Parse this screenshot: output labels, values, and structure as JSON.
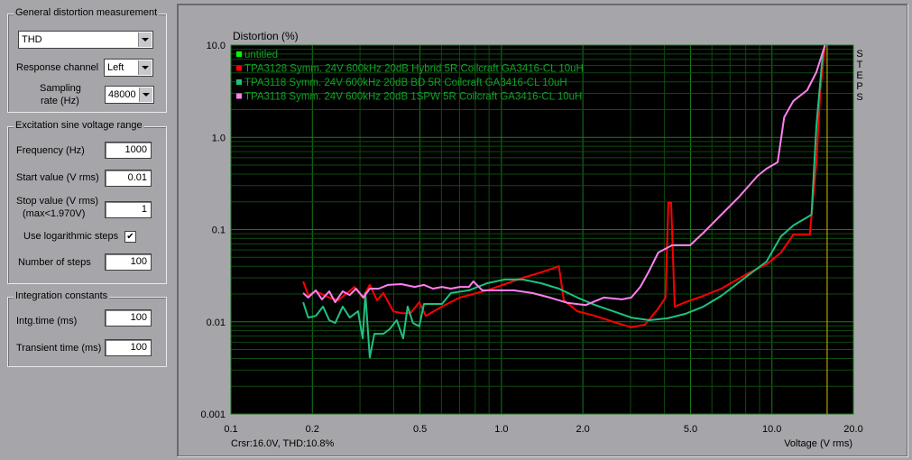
{
  "controls": {
    "general": {
      "title": "General distortion measurement",
      "measurement_type": "THD",
      "response_channel_label": "Response channel",
      "response_channel": "Left",
      "sampling_rate_label_1": "Sampling",
      "sampling_rate_label_2": "rate (Hz)",
      "sampling_rate": "48000"
    },
    "excitation": {
      "title": "Excitation sine voltage range",
      "frequency_label": "Frequency (Hz)",
      "frequency": "1000",
      "start_label": "Start value (V rms)",
      "start": "0.01",
      "stop_label_1": "Stop value (V rms)",
      "stop_label_2": "(max<1.970V)",
      "stop": "1",
      "log_steps_label": "Use logarithmic steps",
      "log_steps_checked": true,
      "log_steps_mark": "✔",
      "steps_label": "Number of steps",
      "steps": "100"
    },
    "integration": {
      "title": "Integration constants",
      "intg_label": "Intg.time (ms)",
      "intg": "100",
      "transient_label": "Transient time (ms)",
      "transient": "100"
    }
  },
  "chart_data": {
    "type": "line",
    "ylabel": "Distortion (%)",
    "xlabel": "Voltage (V rms)",
    "x_scale": "log",
    "y_scale": "log",
    "xlim": [
      0.1,
      20.0
    ],
    "ylim": [
      0.001,
      10.0
    ],
    "x_ticks": [
      "0.1",
      "0.2",
      "0.5",
      "1.0",
      "2.0",
      "5.0",
      "10.0",
      "20.0"
    ],
    "x_tick_values": [
      0.1,
      0.2,
      0.5,
      1.0,
      2.0,
      5.0,
      10.0,
      20.0
    ],
    "y_ticks": [
      "10.0",
      "1.0",
      "0.1",
      "0.01",
      "0.001"
    ],
    "y_tick_values": [
      10,
      1,
      0.1,
      0.01,
      0.001
    ],
    "grid": true,
    "legend_placement": "top-left",
    "side_label": "STEPS",
    "cursor_readout": "Crsr:16.0V, THD:10.8%",
    "cursor_x": 16.0,
    "cursor_color": "#d0c000",
    "background": "#000000",
    "grid_color": "#0f4a0f",
    "major_grid_color": "#1a7a1a",
    "legend_text_color": "#14a028",
    "series": [
      {
        "name": "untitled",
        "color": "#00ff00",
        "points": []
      },
      {
        "name": "TPA3128 Symm. 24V 600kHz 20dB Hybrid 5R Coilcraft GA3416-CL 10uH",
        "color": "#ff0000",
        "points": [
          [
            0.185,
            0.0274
          ],
          [
            0.193,
            0.0195
          ],
          [
            0.206,
            0.0214
          ],
          [
            0.231,
            0.0183
          ],
          [
            0.249,
            0.0171
          ],
          [
            0.269,
            0.0205
          ],
          [
            0.286,
            0.0239
          ],
          [
            0.307,
            0.0183
          ],
          [
            0.326,
            0.0251
          ],
          [
            0.347,
            0.0171
          ],
          [
            0.366,
            0.0205
          ],
          [
            0.398,
            0.013
          ],
          [
            0.427,
            0.0124
          ],
          [
            0.461,
            0.0124
          ],
          [
            0.497,
            0.0163
          ],
          [
            0.525,
            0.0116
          ],
          [
            0.603,
            0.0146
          ],
          [
            0.702,
            0.0183
          ],
          [
            0.885,
            0.0219
          ],
          [
            1.03,
            0.0256
          ],
          [
            1.2,
            0.03
          ],
          [
            1.4,
            0.0343
          ],
          [
            1.57,
            0.0384
          ],
          [
            1.63,
            0.0402
          ],
          [
            1.7,
            0.0171
          ],
          [
            1.91,
            0.013
          ],
          [
            2.22,
            0.0116
          ],
          [
            2.59,
            0.01
          ],
          [
            3.02,
            0.0087
          ],
          [
            3.39,
            0.0093
          ],
          [
            3.8,
            0.0139
          ],
          [
            4.04,
            0.0183
          ],
          [
            4.14,
            0.195
          ],
          [
            4.24,
            0.195
          ],
          [
            4.37,
            0.0146
          ],
          [
            4.79,
            0.0163
          ],
          [
            5.58,
            0.0191
          ],
          [
            6.5,
            0.0229
          ],
          [
            8.19,
            0.0336
          ],
          [
            9.55,
            0.042
          ],
          [
            10.8,
            0.0563
          ],
          [
            12.0,
            0.0883
          ],
          [
            13.8,
            0.0883
          ],
          [
            14.6,
            0.536
          ],
          [
            15.1,
            3.24
          ],
          [
            15.7,
            10
          ]
        ]
      },
      {
        "name": "TPA3118 Symm. 24V 600kHz 20dB BD 5R Coilcraft GA3416-CL 10uH",
        "color": "#20c080",
        "points": [
          [
            0.185,
            0.0163
          ],
          [
            0.193,
            0.0111
          ],
          [
            0.206,
            0.0116
          ],
          [
            0.219,
            0.0146
          ],
          [
            0.231,
            0.0104
          ],
          [
            0.243,
            0.0097
          ],
          [
            0.259,
            0.0146
          ],
          [
            0.275,
            0.0111
          ],
          [
            0.295,
            0.013
          ],
          [
            0.307,
            0.0066
          ],
          [
            0.314,
            0.0205
          ],
          [
            0.326,
            0.0041
          ],
          [
            0.339,
            0.0074
          ],
          [
            0.366,
            0.0074
          ],
          [
            0.386,
            0.0083
          ],
          [
            0.41,
            0.0104
          ],
          [
            0.433,
            0.0066
          ],
          [
            0.45,
            0.0146
          ],
          [
            0.471,
            0.0097
          ],
          [
            0.497,
            0.0089
          ],
          [
            0.517,
            0.0156
          ],
          [
            0.549,
            0.0156
          ],
          [
            0.603,
            0.0156
          ],
          [
            0.65,
            0.0205
          ],
          [
            0.758,
            0.0219
          ],
          [
            0.885,
            0.0262
          ],
          [
            1.03,
            0.0287
          ],
          [
            1.2,
            0.0287
          ],
          [
            1.4,
            0.0262
          ],
          [
            1.63,
            0.0229
          ],
          [
            1.91,
            0.0183
          ],
          [
            2.22,
            0.0152
          ],
          [
            2.59,
            0.013
          ],
          [
            3.02,
            0.0111
          ],
          [
            3.52,
            0.0104
          ],
          [
            4.11,
            0.0109
          ],
          [
            4.79,
            0.0122
          ],
          [
            5.58,
            0.0146
          ],
          [
            6.5,
            0.0191
          ],
          [
            8.19,
            0.0321
          ],
          [
            9.55,
            0.045
          ],
          [
            10.8,
            0.0845
          ],
          [
            12.0,
            0.111
          ],
          [
            14.0,
            0.145
          ],
          [
            14.6,
            1.32
          ],
          [
            15.4,
            8.0
          ],
          [
            15.7,
            10
          ]
        ]
      },
      {
        "name": "TPA3118 Symm. 24V 600kHz 20dB 1SPW 5R Coilcraft GA3416-CL 10uH",
        "color": "#ff80f0",
        "points": [
          [
            0.185,
            0.0205
          ],
          [
            0.193,
            0.0183
          ],
          [
            0.206,
            0.0219
          ],
          [
            0.217,
            0.0175
          ],
          [
            0.231,
            0.0214
          ],
          [
            0.243,
            0.0163
          ],
          [
            0.259,
            0.0214
          ],
          [
            0.275,
            0.0195
          ],
          [
            0.29,
            0.0229
          ],
          [
            0.309,
            0.0183
          ],
          [
            0.326,
            0.0229
          ],
          [
            0.352,
            0.0229
          ],
          [
            0.38,
            0.0251
          ],
          [
            0.427,
            0.0256
          ],
          [
            0.478,
            0.0239
          ],
          [
            0.517,
            0.0251
          ],
          [
            0.558,
            0.0229
          ],
          [
            0.603,
            0.0239
          ],
          [
            0.65,
            0.0229
          ],
          [
            0.702,
            0.0239
          ],
          [
            0.758,
            0.0239
          ],
          [
            0.787,
            0.0274
          ],
          [
            0.85,
            0.0219
          ],
          [
            0.954,
            0.0219
          ],
          [
            1.11,
            0.0219
          ],
          [
            1.3,
            0.0205
          ],
          [
            1.51,
            0.0183
          ],
          [
            1.76,
            0.016
          ],
          [
            2.05,
            0.0152
          ],
          [
            2.39,
            0.0183
          ],
          [
            2.79,
            0.0175
          ],
          [
            3.02,
            0.0183
          ],
          [
            3.26,
            0.0239
          ],
          [
            3.52,
            0.0359
          ],
          [
            3.8,
            0.0563
          ],
          [
            4.27,
            0.0675
          ],
          [
            4.98,
            0.0675
          ],
          [
            5.58,
            0.0925
          ],
          [
            6.5,
            0.145
          ],
          [
            7.58,
            0.228
          ],
          [
            8.85,
            0.382
          ],
          [
            9.55,
            0.457
          ],
          [
            10.5,
            0.536
          ],
          [
            11.1,
            1.65
          ],
          [
            12.0,
            2.48
          ],
          [
            13.5,
            3.24
          ],
          [
            14.6,
            5.09
          ],
          [
            15.7,
            10
          ]
        ]
      }
    ]
  }
}
